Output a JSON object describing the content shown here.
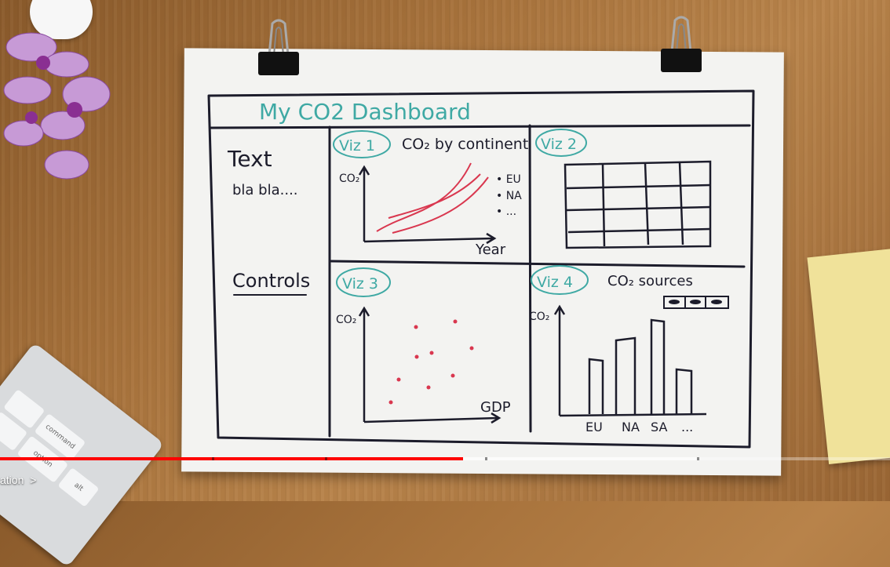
{
  "dashboard": {
    "title": "My CO2 Dashboard",
    "sidebar": {
      "text_heading": "Text",
      "text_body": "bla bla....",
      "controls_label": "Controls"
    },
    "viz1": {
      "badge": "Viz 1",
      "title": "CO₂ by continent",
      "y_label": "CO₂",
      "x_label": "Year",
      "legend": [
        "• EU",
        "• NA",
        "• ..."
      ]
    },
    "viz2": {
      "badge": "Viz 2"
    },
    "viz3": {
      "badge": "Viz 3",
      "y_label": "CO₂",
      "x_label": "GDP"
    },
    "viz4": {
      "badge": "Viz 4",
      "title": "CO₂ sources",
      "y_label": "CO₂",
      "categories": [
        "EU",
        "NA",
        "SA",
        "..."
      ]
    }
  },
  "player": {
    "chapter_label": "ation",
    "chapter_arrow": ">"
  },
  "keyboard": {
    "keys": [
      "command",
      "option",
      "alt"
    ]
  },
  "colors": {
    "ink": "#1c1c2b",
    "teal": "#3fa9a4",
    "red": "#d9374f",
    "progress": "#ff0000"
  }
}
